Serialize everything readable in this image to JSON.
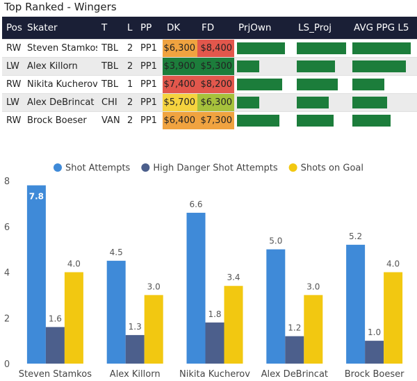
{
  "header": {
    "title": "Top Ranked - Wingers"
  },
  "table": {
    "columns": [
      "Pos",
      "Skater",
      "T",
      "L",
      "PP",
      "DK",
      "FD",
      "PrjOwn",
      "LS_Proj",
      "AVG PPG L5"
    ],
    "rows": [
      {
        "pos": "RW",
        "skater": "Steven Stamkos",
        "team": "TBL",
        "line": "2",
        "pp": "PP1",
        "dk": "$6,300",
        "fd": "$8,400",
        "prjown": 0.86,
        "ls_proj": 0.96,
        "avg_ppg": 0.92
      },
      {
        "pos": "LW",
        "skater": "Alex Killorn",
        "team": "TBL",
        "line": "2",
        "pp": "PP1",
        "dk": "$3,900",
        "fd": "$5,300",
        "prjown": 0.4,
        "ls_proj": 0.74,
        "avg_ppg": 0.85
      },
      {
        "pos": "RW",
        "skater": "Nikita Kucherov",
        "team": "TBL",
        "line": "1",
        "pp": "PP1",
        "dk": "$7,400",
        "fd": "$8,200",
        "prjown": 0.81,
        "ls_proj": 0.8,
        "avg_ppg": 0.51
      },
      {
        "pos": "LW",
        "skater": "Alex DeBrincat",
        "team": "CHI",
        "line": "2",
        "pp": "PP1",
        "dk": "$5,700",
        "fd": "$6,300",
        "prjown": 0.4,
        "ls_proj": 0.62,
        "avg_ppg": 0.55
      },
      {
        "pos": "RW",
        "skater": "Brock Boeser",
        "team": "VAN",
        "line": "2",
        "pp": "PP1",
        "dk": "$6,400",
        "fd": "$7,300",
        "prjown": 0.76,
        "ls_proj": 0.72,
        "avg_ppg": 0.6
      }
    ],
    "colors": {
      "header_bg": "#1a1f36",
      "dk": [
        "#f0a340",
        "#1c7d3b",
        "#e2574c",
        "#f5d33f",
        "#f0a340"
      ],
      "fd": [
        "#e2574c",
        "#1c7d3b",
        "#e2574c",
        "#a6c13c",
        "#f0a340"
      ],
      "bar": "#1c7d3b"
    }
  },
  "chart_data": {
    "type": "bar",
    "categories": [
      "Steven Stamkos",
      "Alex Killorn",
      "Nikita Kucherov",
      "Alex DeBrincat",
      "Brock Boeser"
    ],
    "series": [
      {
        "name": "Shot Attempts",
        "values": [
          7.8,
          4.5,
          6.6,
          5.0,
          5.2
        ],
        "color": "#3f8ad8",
        "labels": [
          "7.8",
          "4.5",
          "6.6",
          "5.0",
          "5.2"
        ]
      },
      {
        "name": "High Danger Shot Attempts",
        "values": [
          1.6,
          1.25,
          1.8,
          1.2,
          1.0
        ],
        "color": "#4c5f8c",
        "labels": [
          "1.6",
          "1.3",
          "1.8",
          "1.2",
          "1.0"
        ]
      },
      {
        "name": "Shots on Goal",
        "values": [
          4.0,
          3.0,
          3.4,
          3.0,
          4.0
        ],
        "color": "#f2c811",
        "labels": [
          "4.0",
          "3.0",
          "3.4",
          "3.0",
          "4.0"
        ]
      }
    ],
    "yticks": [
      "0",
      "2",
      "4",
      "6",
      "8"
    ],
    "ylim": [
      0,
      8
    ],
    "grid": false,
    "legend": "top-center",
    "title": "",
    "xlabel": "",
    "ylabel": ""
  }
}
